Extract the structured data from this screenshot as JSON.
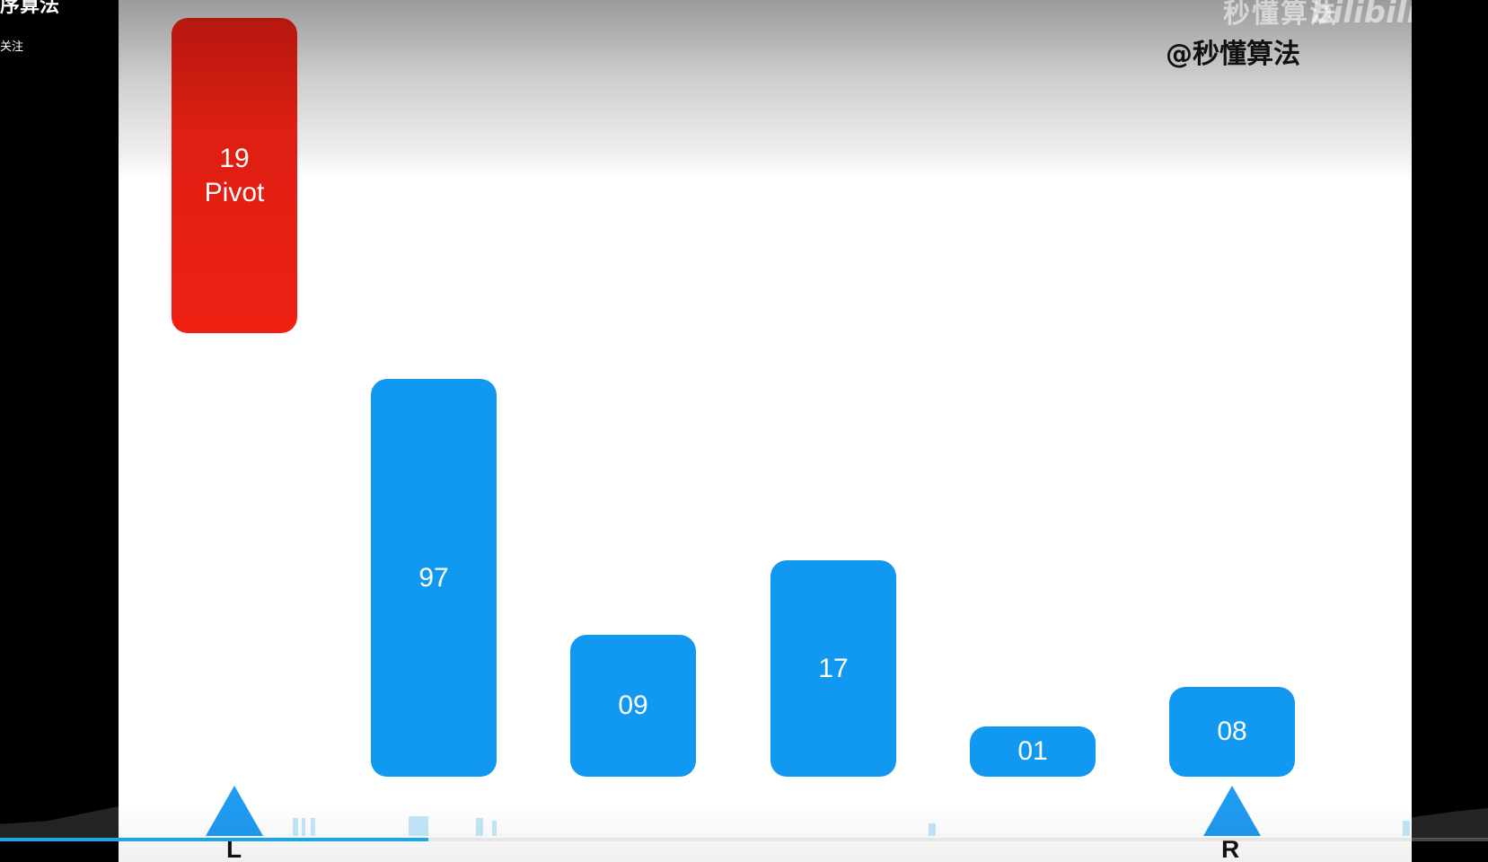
{
  "sidebar": {
    "title": "序算法",
    "follow_label": "关注"
  },
  "video": {
    "channel_tag": "@秒懂算法",
    "watermark_text": "秒懂算法",
    "watermark_logo": "bilibili",
    "pivot": {
      "value": "19",
      "label": "Pivot",
      "color": "#e31e12"
    },
    "bars": [
      {
        "value": "97",
        "color": "#1199f2"
      },
      {
        "value": "09",
        "color": "#1199f2"
      },
      {
        "value": "17",
        "color": "#1199f2"
      },
      {
        "value": "01",
        "color": "#1199f2"
      },
      {
        "value": "08",
        "color": "#1199f2"
      }
    ],
    "pointers": {
      "left_label": "L",
      "right_label": "R",
      "color": "#1f9bf0"
    }
  },
  "player": {
    "progress_fraction": 0.288,
    "progress_color": "#18a8e8"
  }
}
